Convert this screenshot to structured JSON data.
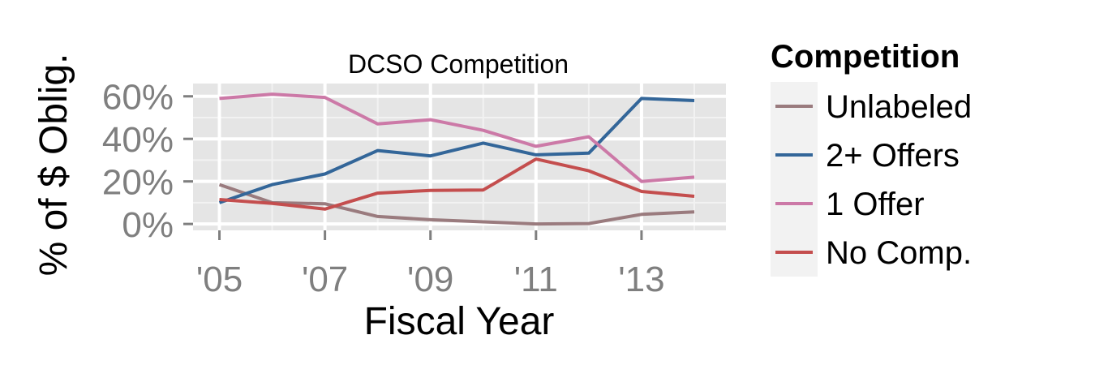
{
  "chart_data": {
    "type": "line",
    "title": "DCSO Competition",
    "xlabel": "Fiscal Year",
    "ylabel": "% of $ Oblig.",
    "x": [
      2005,
      2006,
      2007,
      2008,
      2009,
      2010,
      2011,
      2012,
      2013,
      2014
    ],
    "xticks": [
      2005,
      2007,
      2009,
      2011,
      2013
    ],
    "xtick_labels": [
      "'05",
      "'07",
      "'09",
      "'11",
      "'13"
    ],
    "xlim": [
      2004.5,
      2014.6
    ],
    "yticks": [
      0,
      0.2,
      0.4,
      0.6
    ],
    "ytick_labels": [
      "0%",
      "20%",
      "40%",
      "60%"
    ],
    "ylim": [
      -0.03,
      0.66
    ],
    "grid": true,
    "legend_title": "Competition",
    "legend_position": "right",
    "series": [
      {
        "name": "Unlabeled",
        "color": "#9a7b7e",
        "values": [
          0.185,
          0.1,
          0.095,
          0.035,
          0.02,
          0.01,
          0.0,
          0.002,
          0.045,
          0.057
        ]
      },
      {
        "name": "2+ Offers",
        "color": "#336699",
        "values": [
          0.1,
          0.185,
          0.235,
          0.345,
          0.32,
          0.38,
          0.325,
          0.333,
          0.59,
          0.58
        ]
      },
      {
        "name": "1 Offer",
        "color": "#cc79a7",
        "values": [
          0.59,
          0.61,
          0.595,
          0.47,
          0.49,
          0.44,
          0.365,
          0.41,
          0.2,
          0.22
        ]
      },
      {
        "name": "No Comp.",
        "color": "#c44e4e",
        "values": [
          0.115,
          0.097,
          0.07,
          0.145,
          0.158,
          0.16,
          0.305,
          0.25,
          0.153,
          0.13
        ]
      }
    ]
  }
}
